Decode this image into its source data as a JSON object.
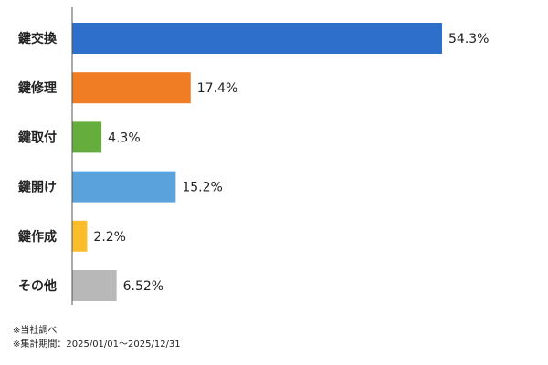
{
  "chart_data": {
    "type": "bar",
    "orientation": "horizontal",
    "categories": [
      "鍵交換",
      "鍵修理",
      "鍵取付",
      "鍵開け",
      "鍵作成",
      "その他"
    ],
    "values": [
      54.3,
      17.4,
      4.3,
      15.2,
      2.2,
      6.52
    ],
    "value_labels": [
      "54.3%",
      "17.4%",
      "4.3%",
      "15.2%",
      "2.2%",
      "6.52%"
    ],
    "colors": [
      "#2f6fcc",
      "#f07d24",
      "#65ad3c",
      "#5aa2dc",
      "#fbbd2c",
      "#b8b8b8"
    ],
    "xlim": [
      0,
      54.3
    ],
    "grid": false,
    "legend": "none"
  },
  "notes": {
    "source": "※当社調べ",
    "period": "※集計期間：2025/01/01～2025/12/31"
  }
}
